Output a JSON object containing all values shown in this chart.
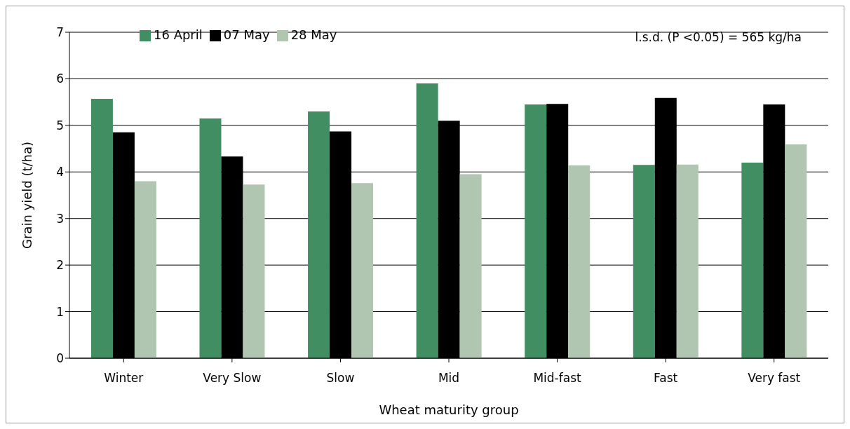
{
  "chart_data": {
    "type": "bar",
    "xlabel": "Wheat maturity group",
    "ylabel": "Grain yield (t/ha)",
    "categories": [
      "Winter",
      "Very Slow",
      "Slow",
      "Mid",
      "Mid-fast",
      "Fast",
      "Very fast"
    ],
    "series": [
      {
        "name": "16 April",
        "color": "#408e61",
        "values": [
          5.57,
          5.15,
          5.3,
          5.9,
          5.45,
          4.15,
          4.2
        ]
      },
      {
        "name": "07 May",
        "color": "#000000",
        "values": [
          4.85,
          4.33,
          4.87,
          5.1,
          5.46,
          5.59,
          5.45
        ]
      },
      {
        "name": "28 May",
        "color": "#b0c6b1",
        "values": [
          3.8,
          3.73,
          3.76,
          3.95,
          4.14,
          4.16,
          4.59
        ]
      }
    ],
    "ylim": [
      0,
      7
    ],
    "yticks": [
      0,
      1,
      2,
      3,
      4,
      5,
      6,
      7
    ],
    "grid": "y",
    "legend": "top left",
    "annotations": [
      "l.s.d. (P <0.05) = 565 kg/ha"
    ]
  }
}
